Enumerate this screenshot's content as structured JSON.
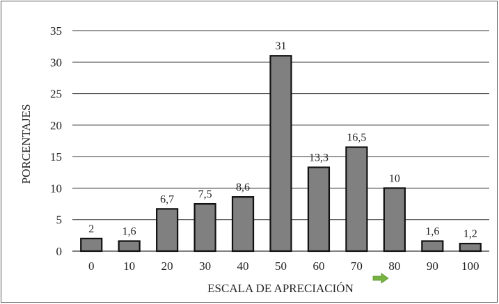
{
  "chart_data": {
    "type": "bar",
    "categories": [
      "0",
      "10",
      "20",
      "30",
      "40",
      "50",
      "60",
      "70",
      "80",
      "90",
      "100"
    ],
    "values": [
      2,
      1.6,
      6.7,
      7.5,
      8.6,
      31,
      13.3,
      16.5,
      10,
      1.6,
      1.2
    ],
    "data_labels": [
      "2",
      "1,6",
      "6,7",
      "7,5",
      "8,6",
      "31",
      "13,3",
      "16,5",
      "10",
      "1,6",
      "1,2"
    ],
    "y_ticks": [
      "0",
      "5",
      "10",
      "15",
      "20",
      "25",
      "30",
      "35"
    ],
    "ylim": [
      0,
      35
    ],
    "xlabel": "ESCALA DE APRECIACIÓN",
    "ylabel": "PORCENTAJES",
    "title": "",
    "grid": true,
    "legend": false,
    "colors": {
      "bar_fill": "#808080",
      "bar_stroke": "#111111",
      "grid": "#333333",
      "arrow": "#77b340"
    },
    "annotation_icon": "right-arrow-icon"
  }
}
